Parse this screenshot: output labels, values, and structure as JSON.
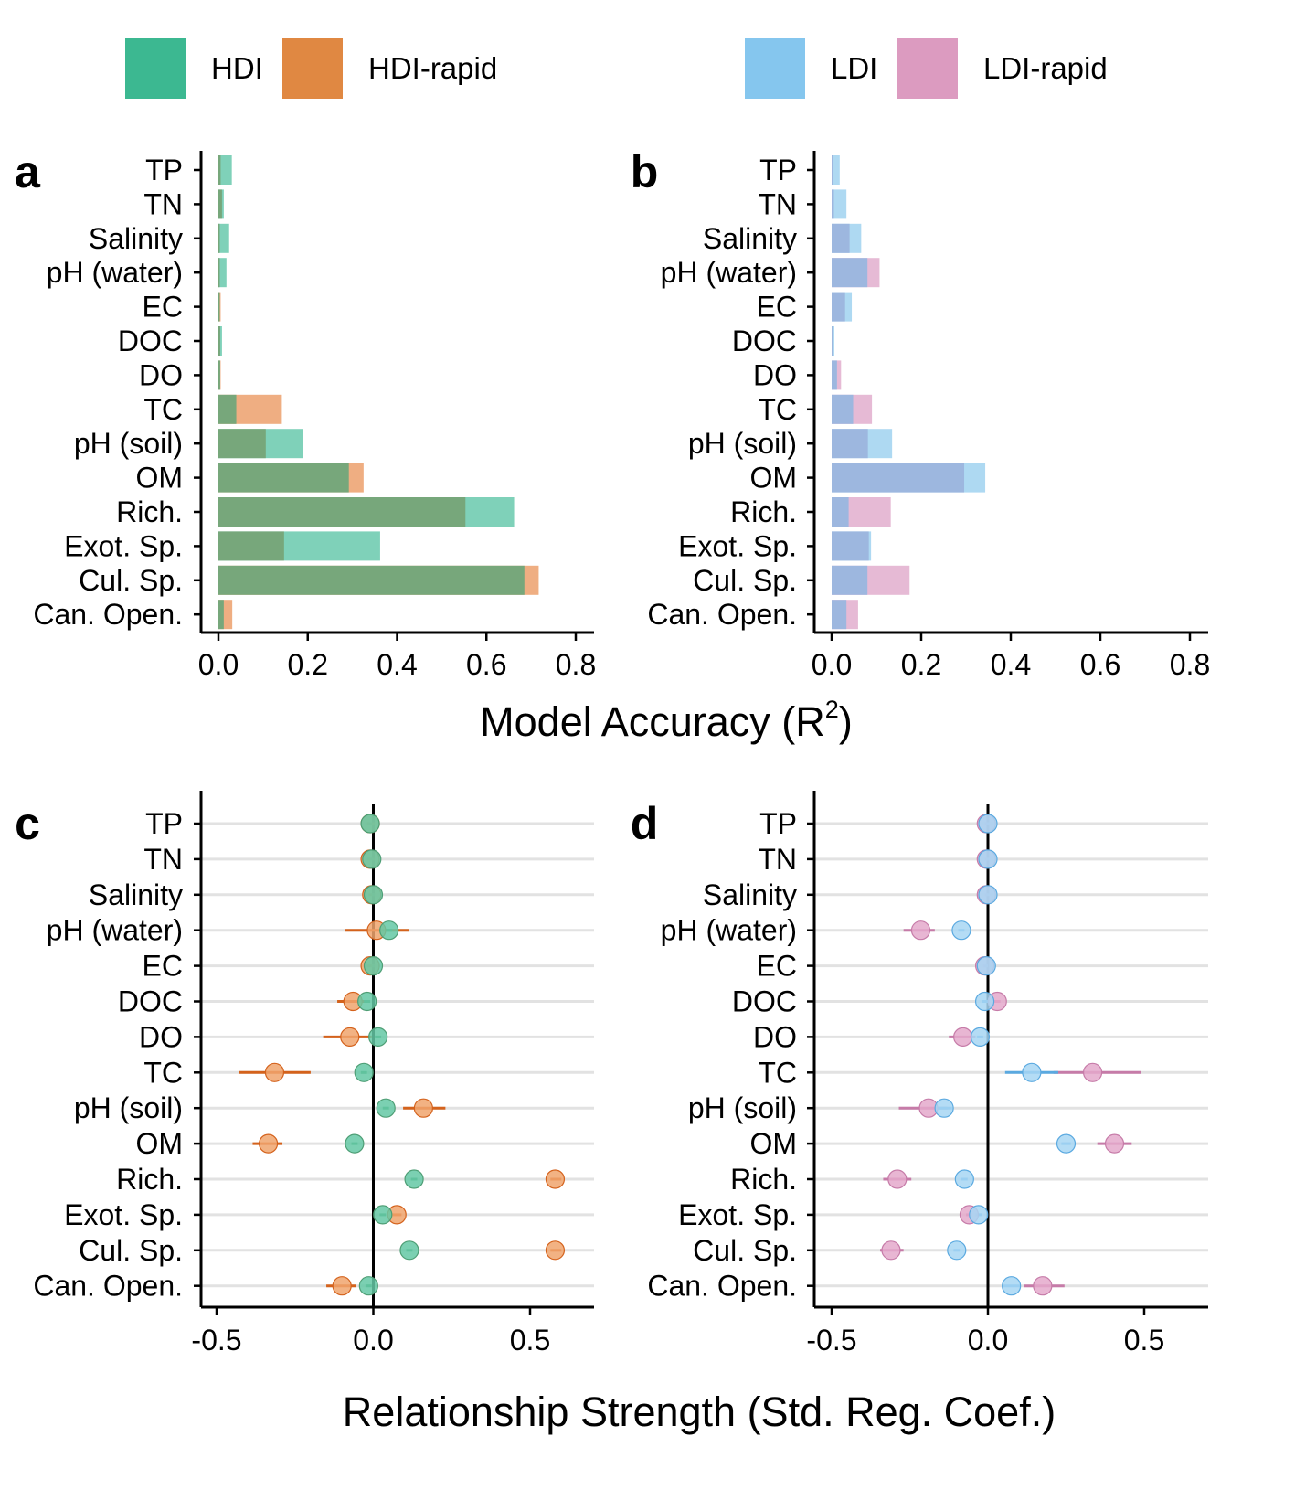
{
  "legend": {
    "items": [
      {
        "label": "HDI",
        "color": "#3cb891"
      },
      {
        "label": "HDI-rapid",
        "color": "#e08842"
      },
      {
        "label": "LDI",
        "color": "#85c6ee"
      },
      {
        "label": "LDI-rapid",
        "color": "#dc9bc0"
      }
    ]
  },
  "chart_data": [
    {
      "panel": "a",
      "type": "bar",
      "categories": [
        "TP",
        "TN",
        "Salinity",
        "pH (water)",
        "EC",
        "DOC",
        "DO",
        "TC",
        "pH (soil)",
        "OM",
        "Rich.",
        "Exot. Sp.",
        "Cul. Sp.",
        "Can. Open."
      ],
      "series": [
        {
          "name": "HDI",
          "values": [
            0.03,
            0.012,
            0.024,
            0.018,
            0.003,
            0.008,
            0.004,
            0.04,
            0.19,
            0.292,
            0.662,
            0.362,
            0.685,
            0.012
          ]
        },
        {
          "name": "HDI-rapid",
          "values": [
            0.005,
            0.008,
            0.003,
            0.003,
            0.005,
            0.004,
            0.005,
            0.142,
            0.106,
            0.325,
            0.553,
            0.147,
            0.717,
            0.031
          ]
        }
      ],
      "xlim": [
        0,
        0.8
      ],
      "xticks": [
        "0.0",
        "0.2",
        "0.4",
        "0.6",
        "0.8"
      ]
    },
    {
      "panel": "b",
      "type": "bar",
      "categories": [
        "TP",
        "TN",
        "Salinity",
        "pH (water)",
        "EC",
        "DOC",
        "DO",
        "TC",
        "pH (soil)",
        "OM",
        "Rich.",
        "Exot. Sp.",
        "Cul. Sp.",
        "Can. Open."
      ],
      "series": [
        {
          "name": "LDI",
          "values": [
            0.018,
            0.033,
            0.066,
            0.08,
            0.045,
            0.006,
            0.012,
            0.048,
            0.135,
            0.343,
            0.038,
            0.088,
            0.08,
            0.033
          ]
        },
        {
          "name": "LDI-rapid",
          "values": [
            0.003,
            0.005,
            0.04,
            0.107,
            0.03,
            0.004,
            0.021,
            0.09,
            0.081,
            0.296,
            0.132,
            0.083,
            0.174,
            0.059
          ]
        }
      ],
      "xlim": [
        0,
        0.8
      ],
      "xticks": [
        "0.0",
        "0.2",
        "0.4",
        "0.6",
        "0.8"
      ]
    },
    {
      "panel": "c",
      "type": "scatter",
      "categories": [
        "TP",
        "TN",
        "Salinity",
        "pH (water)",
        "EC",
        "DOC",
        "DO",
        "TC",
        "pH (soil)",
        "OM",
        "Rich.",
        "Exot. Sp.",
        "Cul. Sp.",
        "Can. Open."
      ],
      "series": [
        {
          "name": "HDI-rapid",
          "values": [
            -0.01,
            -0.01,
            -0.005,
            0.01,
            -0.01,
            -0.065,
            -0.075,
            -0.315,
            0.16,
            -0.335,
            0.58,
            0.075,
            0.58,
            -0.1
          ],
          "ci_low": [
            -0.02,
            -0.02,
            -0.015,
            -0.09,
            -0.02,
            -0.115,
            -0.16,
            -0.43,
            0.095,
            -0.385,
            0.565,
            0.06,
            0.565,
            -0.15
          ],
          "ci_high": [
            0.005,
            0.005,
            0.005,
            0.115,
            0.005,
            -0.025,
            -0.005,
            -0.2,
            0.23,
            -0.29,
            0.6,
            0.09,
            0.6,
            -0.055
          ]
        },
        {
          "name": "HDI",
          "values": [
            -0.01,
            -0.005,
            0.0,
            0.05,
            0.0,
            -0.02,
            0.015,
            -0.03,
            0.04,
            -0.06,
            0.13,
            0.03,
            0.115,
            -0.015
          ],
          "ci_low": [
            -0.015,
            -0.01,
            -0.005,
            0.04,
            -0.005,
            -0.03,
            0.005,
            -0.04,
            0.03,
            -0.07,
            0.12,
            0.02,
            0.105,
            -0.025
          ],
          "ci_high": [
            -0.005,
            0.0,
            0.005,
            0.06,
            0.005,
            -0.01,
            0.025,
            -0.02,
            0.05,
            -0.05,
            0.14,
            0.04,
            0.125,
            -0.005
          ]
        }
      ],
      "xlim": [
        -0.5,
        0.7
      ],
      "xticks": [
        "-0.5",
        "0.0",
        "0.5"
      ]
    },
    {
      "panel": "d",
      "type": "scatter",
      "categories": [
        "TP",
        "TN",
        "Salinity",
        "pH (water)",
        "EC",
        "DOC",
        "DO",
        "TC",
        "pH (soil)",
        "OM",
        "Rich.",
        "Exot. Sp.",
        "Cul. Sp.",
        "Can. Open."
      ],
      "series": [
        {
          "name": "LDI-rapid",
          "values": [
            -0.005,
            -0.005,
            -0.005,
            -0.215,
            -0.01,
            0.03,
            -0.08,
            0.335,
            -0.19,
            0.405,
            -0.29,
            -0.06,
            -0.31,
            0.175
          ],
          "ci_low": [
            -0.01,
            -0.01,
            -0.01,
            -0.27,
            -0.015,
            0.02,
            -0.125,
            0.21,
            -0.285,
            0.35,
            -0.335,
            -0.07,
            -0.345,
            0.115
          ],
          "ci_high": [
            0.0,
            0.0,
            0.0,
            -0.17,
            -0.005,
            0.04,
            -0.04,
            0.49,
            -0.13,
            0.46,
            -0.245,
            -0.05,
            -0.27,
            0.245
          ]
        },
        {
          "name": "LDI",
          "values": [
            0.0,
            0.0,
            0.0,
            -0.085,
            -0.005,
            -0.01,
            -0.025,
            0.14,
            -0.14,
            0.25,
            -0.075,
            -0.03,
            -0.1,
            0.075
          ],
          "ci_low": [
            -0.005,
            -0.005,
            -0.005,
            -0.095,
            -0.01,
            -0.02,
            -0.035,
            0.055,
            -0.165,
            0.235,
            -0.085,
            -0.04,
            -0.11,
            0.045
          ],
          "ci_high": [
            0.005,
            0.005,
            0.005,
            -0.075,
            0.0,
            0.0,
            -0.015,
            0.225,
            -0.115,
            0.265,
            -0.065,
            -0.02,
            -0.09,
            0.105
          ]
        }
      ],
      "xlim": [
        -0.5,
        0.7
      ],
      "xticks": [
        "-0.5",
        "0.0",
        "0.5"
      ]
    }
  ],
  "axes": {
    "top_title": "Model Accuracy (R",
    "top_title_sup": "2",
    "top_title_end": ")",
    "bottom_title": "Relationship Strength (Std. Reg. Coef.)"
  },
  "colors": {
    "hdi_bar": "#7fd1b9",
    "hdi_rapid_bar": "#efae82",
    "hdi_overlap_bar": "#77a77b",
    "ldi_bar": "#aed9f2",
    "ldi_rapid_bar": "#e6bad5",
    "ldi_overlap_bar": "#9db7df",
    "hdi_dot": "#64c8a5",
    "hdi_rapid_dot": "#f0a56d",
    "hdi_rapid_err": "#d4621c",
    "ldi_dot": "#a7d6f3",
    "ldi_err": "#5aa9e0",
    "ldi_rapid_dot": "#e4a9cb",
    "ldi_rapid_err": "#c67ba8",
    "overlap_dot": "#4e9e75"
  }
}
